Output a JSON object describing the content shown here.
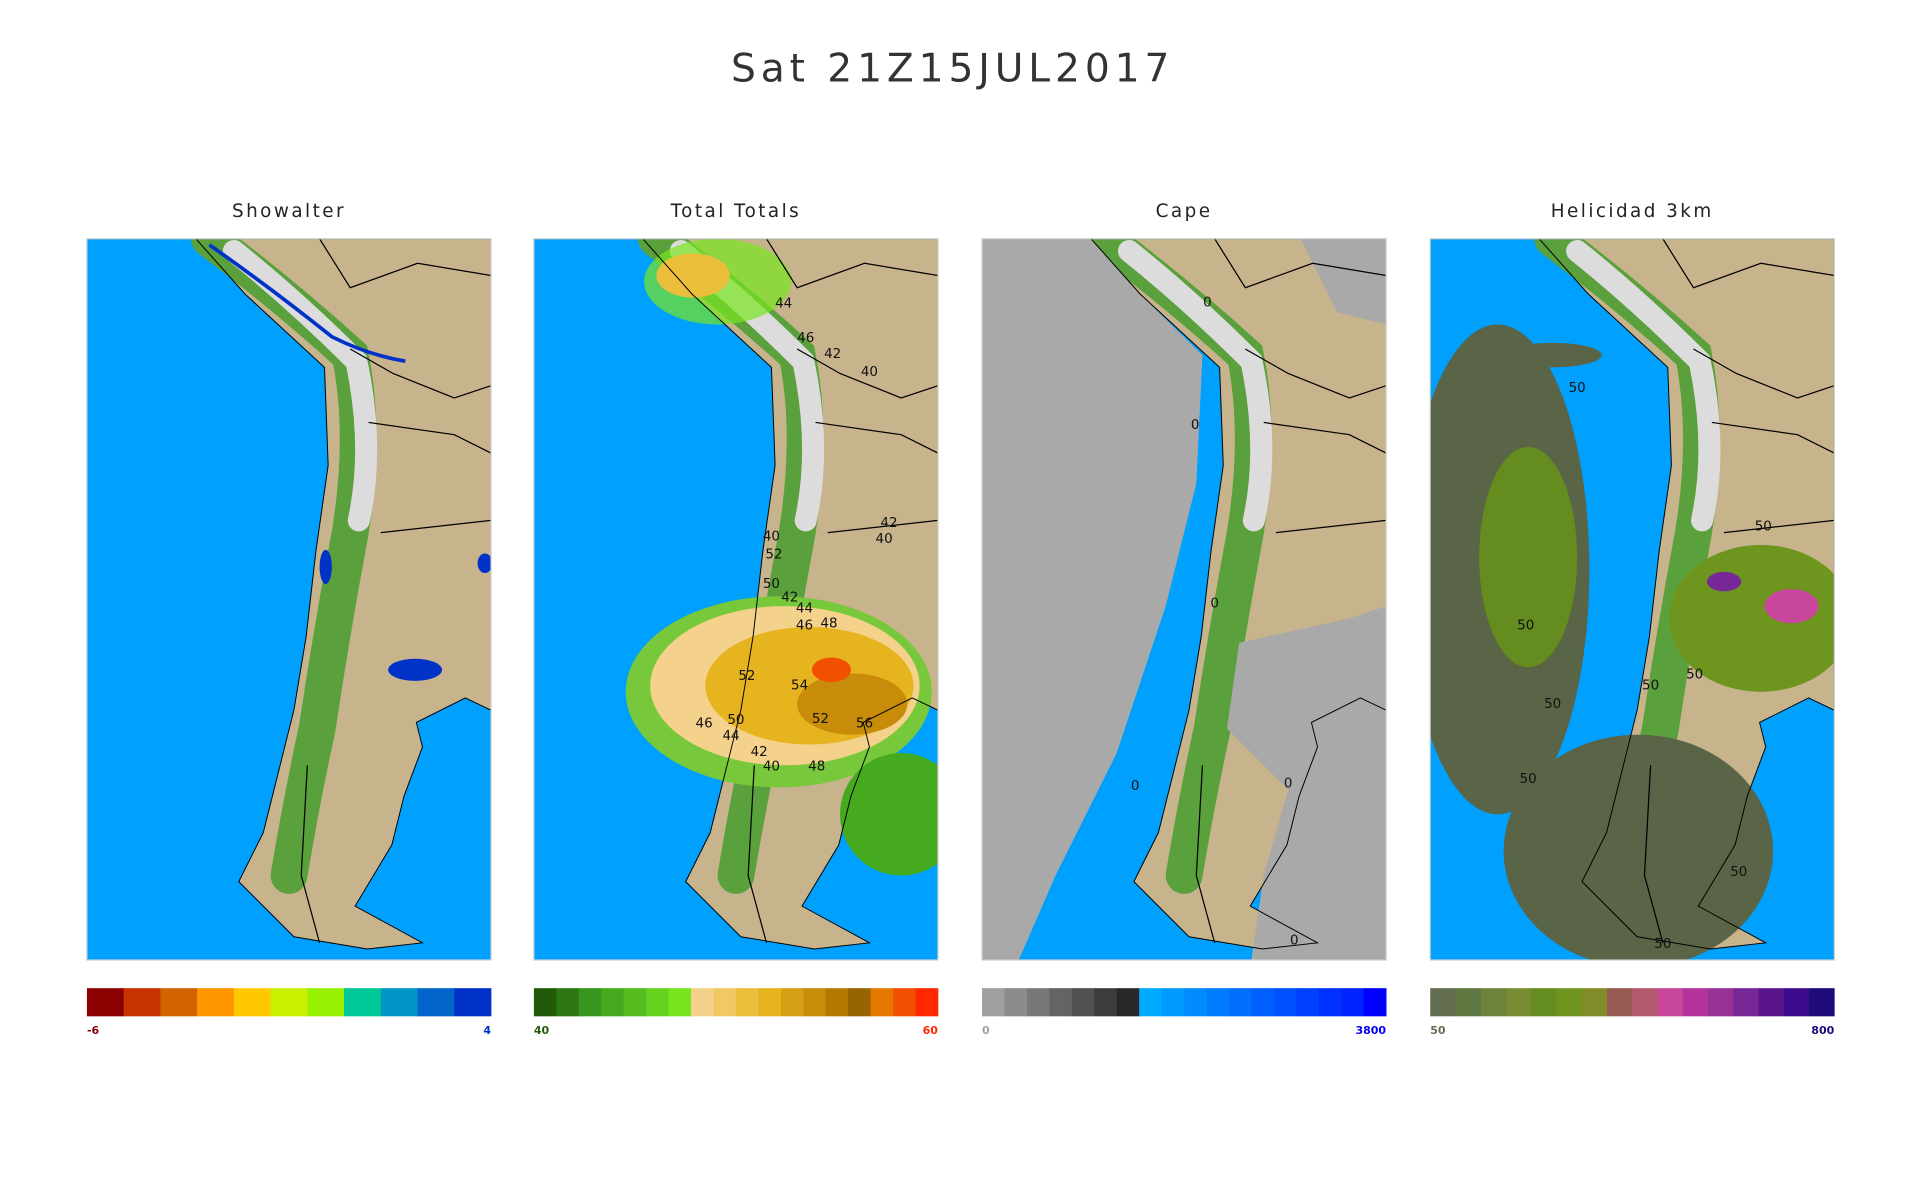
{
  "header": {
    "title": "Sat 21Z15JUL2017"
  },
  "panels": [
    {
      "title": "Showalter",
      "scale_min": -6,
      "scale_max": 4,
      "colors": [
        "#8b0000",
        "#c83200",
        "#d26400",
        "#ff9600",
        "#ffc800",
        "#c8f000",
        "#96f000",
        "#00c896",
        "#0096c8",
        "#0064c8",
        "#0032c8"
      ],
      "contour_labels": []
    },
    {
      "title": "Total  Totals",
      "scale_min": 40,
      "scale_max": 60,
      "colors": [
        "#235a0a",
        "#2d7814",
        "#37961e",
        "#46aa1e",
        "#55be1e",
        "#64d21e",
        "#78e61e",
        "#f5d28c",
        "#f0c864",
        "#ebbe3c",
        "#e6b41e",
        "#d7a014",
        "#c88c0a",
        "#b47800",
        "#966400",
        "#e67800",
        "#f05000",
        "#ff2800"
      ],
      "contour_labels": [
        44,
        46,
        42,
        40,
        42,
        40,
        40,
        52,
        50,
        42,
        44,
        46,
        48,
        52,
        54,
        52,
        56,
        50,
        46,
        44,
        42,
        40,
        48
      ]
    },
    {
      "title": "Cape",
      "scale_min": 0,
      "scale_max": 3800,
      "colors": [
        "#a0a0a0",
        "#8c8c8c",
        "#787878",
        "#646464",
        "#505050",
        "#3c3c3c",
        "#282828",
        "#00aaff",
        "#009bff",
        "#008cff",
        "#007dff",
        "#006eff",
        "#005fff",
        "#0050ff",
        "#0041ff",
        "#0032ff",
        "#0023ff",
        "#0000ff"
      ],
      "contour_labels": [
        0,
        0,
        0,
        0,
        0,
        0
      ]
    },
    {
      "title": "Helicidad 3km",
      "scale_min": 50,
      "scale_max": 800,
      "colors": [
        "#646e50",
        "#5f7841",
        "#6e823c",
        "#788c32",
        "#648c1e",
        "#6e961e",
        "#828c28",
        "#965a50",
        "#b45a6e",
        "#c8469b",
        "#b4329b",
        "#963296",
        "#782896",
        "#5a148c",
        "#3c0a8c",
        "#1e0a78"
      ],
      "contour_labels": [
        50,
        50,
        50,
        50,
        50,
        50,
        50,
        50,
        50
      ]
    }
  ]
}
